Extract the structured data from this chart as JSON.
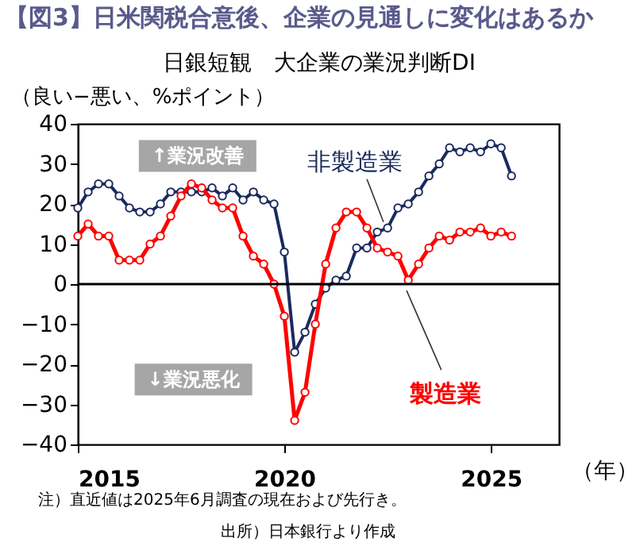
{
  "chart_data": {
    "type": "line",
    "title": "【図3】日米関税合意後、企業の見通しに変化はあるか",
    "subtitle": "日銀短観　大企業の業況判断DI",
    "ylabel": "（良い−悪い、%ポイント）",
    "xlabel": "（年）",
    "x": [
      2015,
      2015.25,
      2015.5,
      2015.75,
      2016,
      2016.25,
      2016.5,
      2016.75,
      2017,
      2017.25,
      2017.5,
      2017.75,
      2018,
      2018.25,
      2018.5,
      2018.75,
      2019,
      2019.25,
      2019.5,
      2019.75,
      2020,
      2020.25,
      2020.5,
      2020.75,
      2021,
      2021.25,
      2021.5,
      2021.75,
      2022,
      2022.25,
      2022.5,
      2022.75,
      2023,
      2023.25,
      2023.5,
      2023.75,
      2024,
      2024.25,
      2024.5,
      2024.75,
      2025,
      2025.25,
      2025.5
    ],
    "series": [
      {
        "name": "非製造業",
        "color": "#1b2a5e",
        "values": [
          19,
          23,
          25,
          25,
          22,
          19,
          18,
          18,
          20,
          23,
          23,
          23,
          23,
          24,
          22,
          24,
          21,
          23,
          21,
          20,
          8,
          -17,
          -12,
          -5,
          -1,
          1,
          2,
          9,
          9,
          13,
          14,
          19,
          20,
          23,
          27,
          30,
          34,
          33,
          34,
          33,
          35,
          34,
          27
        ]
      },
      {
        "name": "製造業",
        "color": "#ff0000",
        "values": [
          12,
          15,
          12,
          12,
          6,
          6,
          6,
          10,
          12,
          17,
          22,
          25,
          24,
          21,
          19,
          19,
          12,
          7,
          5,
          0,
          -8,
          -34,
          -27,
          -10,
          5,
          14,
          18,
          18,
          14,
          9,
          8,
          7,
          1,
          5,
          9,
          12,
          11,
          13,
          13,
          14,
          12,
          13,
          12
        ]
      }
    ],
    "xlim": [
      2015,
      2026.65
    ],
    "xticks": [
      2015,
      2020,
      2025
    ],
    "ylim": [
      -40,
      40
    ],
    "yticks": [
      -40,
      -30,
      -20,
      -10,
      0,
      10,
      20,
      30,
      40
    ],
    "ref_lines": [
      {
        "axis": "y",
        "value": 0,
        "color": "#000000"
      }
    ],
    "grid": false,
    "marker": "circle",
    "line_style": "solid",
    "annotations": [
      "↑業況改善",
      "↓業況悪化",
      "注）直近値は2025年6月調査の現在および先行き。",
      "出所）日本銀行より作成"
    ]
  }
}
